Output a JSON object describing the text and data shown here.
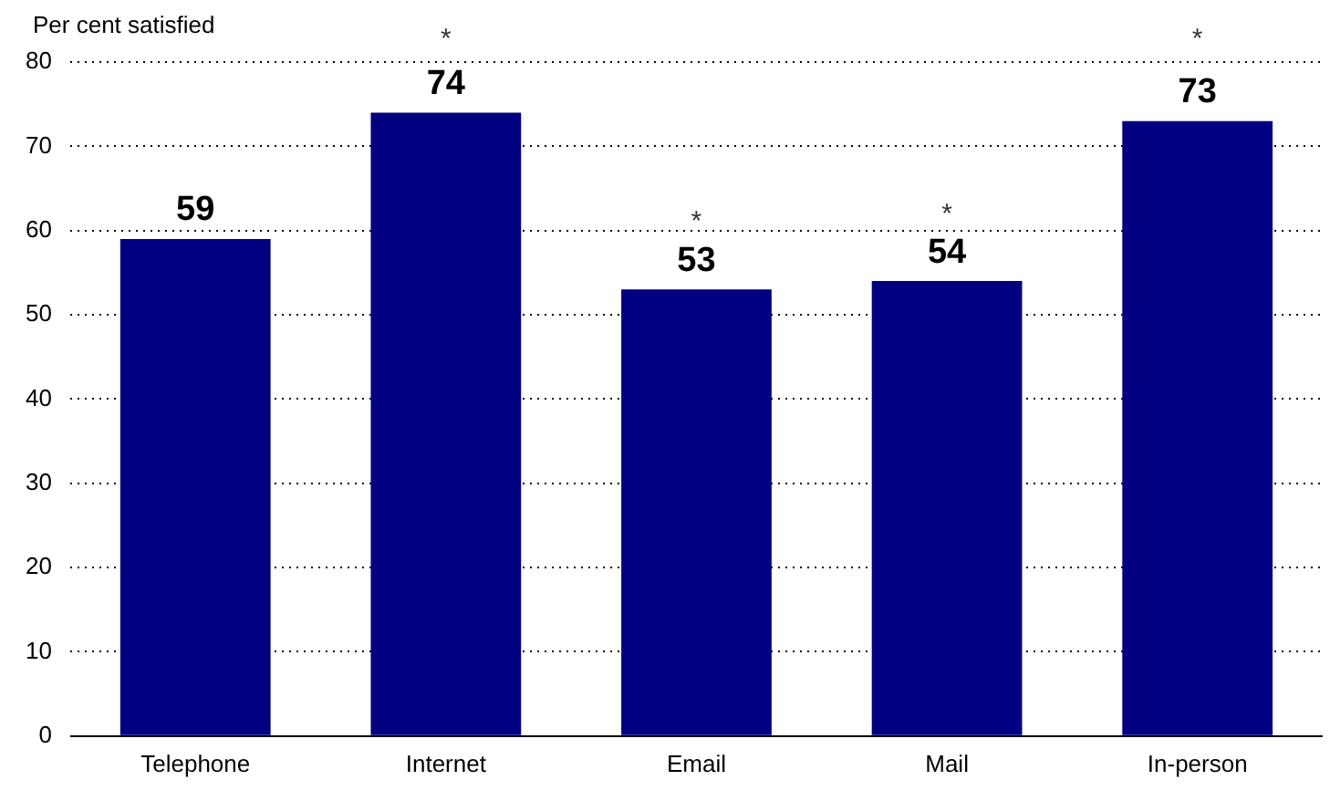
{
  "chart_data": {
    "type": "bar",
    "ylabel": "Per cent satisfied",
    "categories": [
      "Telephone",
      "Internet",
      "Email",
      "Mail",
      "In-person"
    ],
    "values": [
      59,
      74,
      53,
      54,
      73
    ],
    "color": "#000080",
    "ylim": [
      0,
      80
    ],
    "yticks": [
      0,
      10,
      20,
      30,
      40,
      50,
      60,
      70,
      80
    ],
    "grid": "y",
    "data_labels": true,
    "annotations": [
      "*",
      "*",
      "*",
      "*"
    ]
  }
}
